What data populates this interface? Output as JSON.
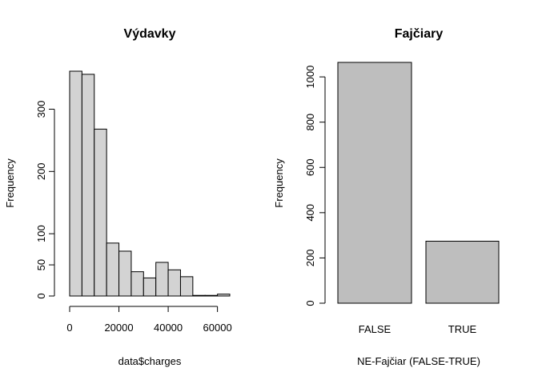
{
  "chart_data": [
    {
      "type": "bar",
      "subtype": "histogram",
      "title": "Výdavky",
      "xlabel": "data$charges",
      "ylabel": "Frequency",
      "bin_edges": [
        0,
        5000,
        10000,
        15000,
        20000,
        25000,
        30000,
        35000,
        40000,
        45000,
        50000,
        55000,
        60000,
        65000
      ],
      "values": [
        361,
        356,
        268,
        85,
        72,
        39,
        29,
        54,
        42,
        31,
        1,
        1,
        3
      ],
      "xlim": [
        0,
        65000
      ],
      "ylim": [
        0,
        361
      ],
      "x_ticks": [
        0,
        20000,
        40000,
        60000
      ],
      "x_tick_labels": [
        "0",
        "20000",
        "40000",
        "60000"
      ],
      "y_ticks": [
        0,
        50,
        100,
        200,
        300
      ],
      "y_tick_labels": [
        "0",
        "50",
        "100",
        "200",
        "300"
      ],
      "bar_color": "#d3d3d3",
      "grid": false
    },
    {
      "type": "bar",
      "title": "Fajčiary",
      "xlabel": "NE-Fajčiar (FALSE-TRUE)",
      "ylabel": "Frequency",
      "categories": [
        "FALSE",
        "TRUE"
      ],
      "values": [
        1064,
        274
      ],
      "ylim": [
        0,
        1064
      ],
      "y_ticks": [
        0,
        200,
        400,
        600,
        800,
        1000
      ],
      "y_tick_labels": [
        "0",
        "200",
        "400",
        "600",
        "800",
        "1000"
      ],
      "bar_color": "#bebebe",
      "grid": false
    }
  ]
}
